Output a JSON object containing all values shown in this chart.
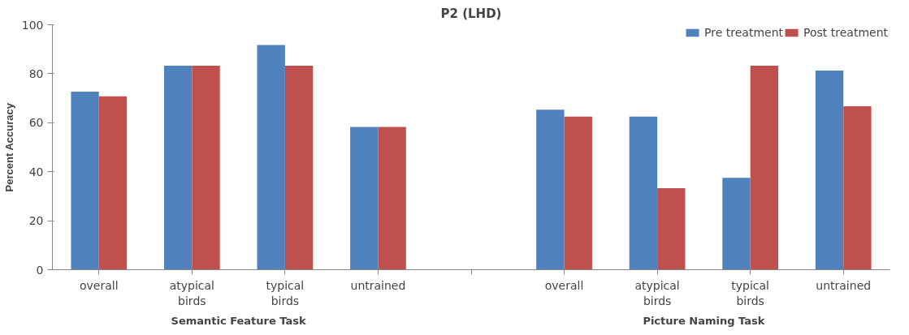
{
  "chart_data": {
    "type": "bar",
    "title": "P2 (LHD)",
    "ylabel": "Percent Accuracy",
    "categories": [
      "overall",
      "atypical\nbirds",
      "typical\nbirds",
      "untrained",
      null,
      "overall",
      "atypical\nbirds",
      "typical\nbirds",
      "untrained"
    ],
    "series": [
      {
        "name": "Pre treatment",
        "color": "#4f81bd",
        "values": [
          72.7,
          83.3,
          91.7,
          58.3,
          null,
          65.3,
          62.5,
          37.5,
          81.3
        ]
      },
      {
        "name": "Post treatment",
        "color": "#c0504d",
        "values": [
          70.8,
          83.3,
          83.3,
          58.3,
          null,
          62.5,
          33.3,
          83.3,
          66.7
        ]
      }
    ],
    "annotations": [
      "Semantic Feature Task",
      "Picture Naming Task"
    ],
    "ylim": [
      0,
      100
    ],
    "yticks": [
      0,
      20,
      40,
      60,
      80,
      100
    ],
    "grid": false,
    "legend": "top right"
  }
}
